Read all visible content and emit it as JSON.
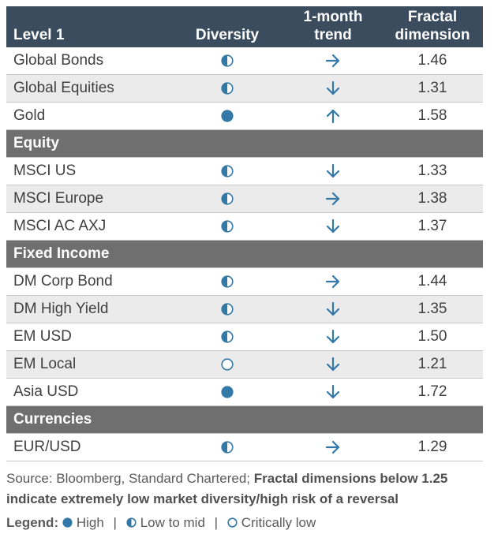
{
  "header": {
    "col1": "Level 1",
    "col2": "Diversity",
    "col3_line1": "1-month",
    "col3_line2": "trend",
    "col4_line1": "Fractal",
    "col4_line2": "dimension"
  },
  "sections": [
    {
      "title": "",
      "rows": [
        {
          "name": "Global Bonds",
          "diversity": "half",
          "trend": "right",
          "value": "1.46"
        },
        {
          "name": "Global Equities",
          "diversity": "half",
          "trend": "down",
          "value": "1.31"
        },
        {
          "name": "Gold",
          "diversity": "full",
          "trend": "up",
          "value": "1.58"
        }
      ]
    },
    {
      "title": "Equity",
      "rows": [
        {
          "name": "MSCI US",
          "diversity": "half",
          "trend": "down",
          "value": "1.33"
        },
        {
          "name": "MSCI Europe",
          "diversity": "half",
          "trend": "right",
          "value": "1.38"
        },
        {
          "name": "MSCI AC AXJ",
          "diversity": "half",
          "trend": "down",
          "value": "1.37"
        }
      ]
    },
    {
      "title": "Fixed Income",
      "rows": [
        {
          "name": "DM Corp Bond",
          "diversity": "half",
          "trend": "right",
          "value": "1.44"
        },
        {
          "name": "DM High Yield",
          "diversity": "half",
          "trend": "down",
          "value": "1.35"
        },
        {
          "name": "EM USD",
          "diversity": "half",
          "trend": "down",
          "value": "1.50"
        },
        {
          "name": "EM Local",
          "diversity": "empty",
          "trend": "down",
          "value": "1.21"
        },
        {
          "name": "Asia USD",
          "diversity": "full",
          "trend": "down",
          "value": "1.72"
        }
      ]
    },
    {
      "title": "Currencies",
      "rows": [
        {
          "name": "EUR/USD",
          "diversity": "half",
          "trend": "right",
          "value": "1.29"
        }
      ]
    }
  ],
  "footer": {
    "source_normal": "Source: Bloomberg, Standard Chartered; ",
    "source_bold": "Fractal dimensions below 1.25 indicate extremely low market diversity/high risk of a reversal"
  },
  "legend": {
    "label": "Legend:",
    "high": "High",
    "low_to_mid": "Low to mid",
    "critically_low": "Critically low",
    "separator": "|"
  },
  "colors": {
    "header_bg": "#3c4c5f",
    "section_bg": "#6f6f6f",
    "row_alt_bg": "#ebebeb",
    "icon_blue": "#3279a8"
  }
}
